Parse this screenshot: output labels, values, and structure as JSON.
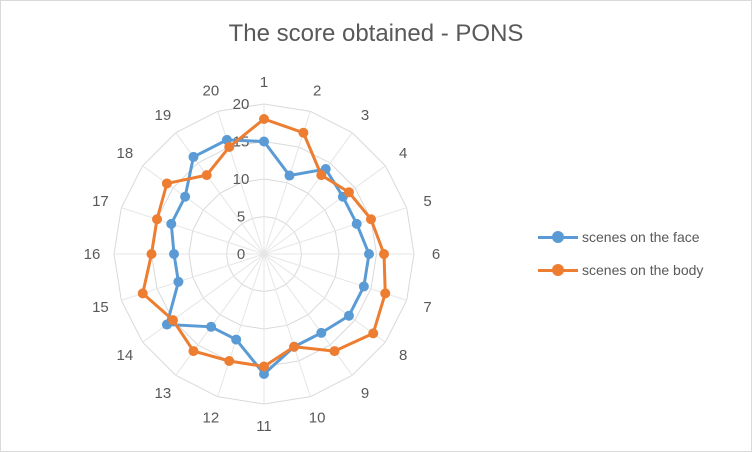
{
  "chart_data": {
    "type": "radar",
    "title": "The score obtained - PONS",
    "categories": [
      "1",
      "2",
      "3",
      "4",
      "5",
      "6",
      "7",
      "8",
      "9",
      "10",
      "11",
      "12",
      "13",
      "14",
      "15",
      "16",
      "17",
      "18",
      "19",
      "20"
    ],
    "radial_ticks": [
      0,
      5,
      10,
      15,
      20
    ],
    "rlim": [
      0,
      20
    ],
    "grid": true,
    "legend_position": "right",
    "series": [
      {
        "name": "scenes on the face",
        "color": "#5b9bd5",
        "values": [
          15,
          11,
          14,
          13,
          13,
          14,
          14,
          14,
          13,
          13,
          16,
          12,
          12,
          16,
          12,
          12,
          13,
          13,
          16,
          16
        ]
      },
      {
        "name": "scenes on the body",
        "color": "#ed7d31",
        "values": [
          18,
          17,
          13,
          14,
          15,
          16,
          17,
          18,
          16,
          13,
          15,
          15,
          16,
          15,
          17,
          15,
          15,
          16,
          13,
          15
        ]
      }
    ]
  }
}
